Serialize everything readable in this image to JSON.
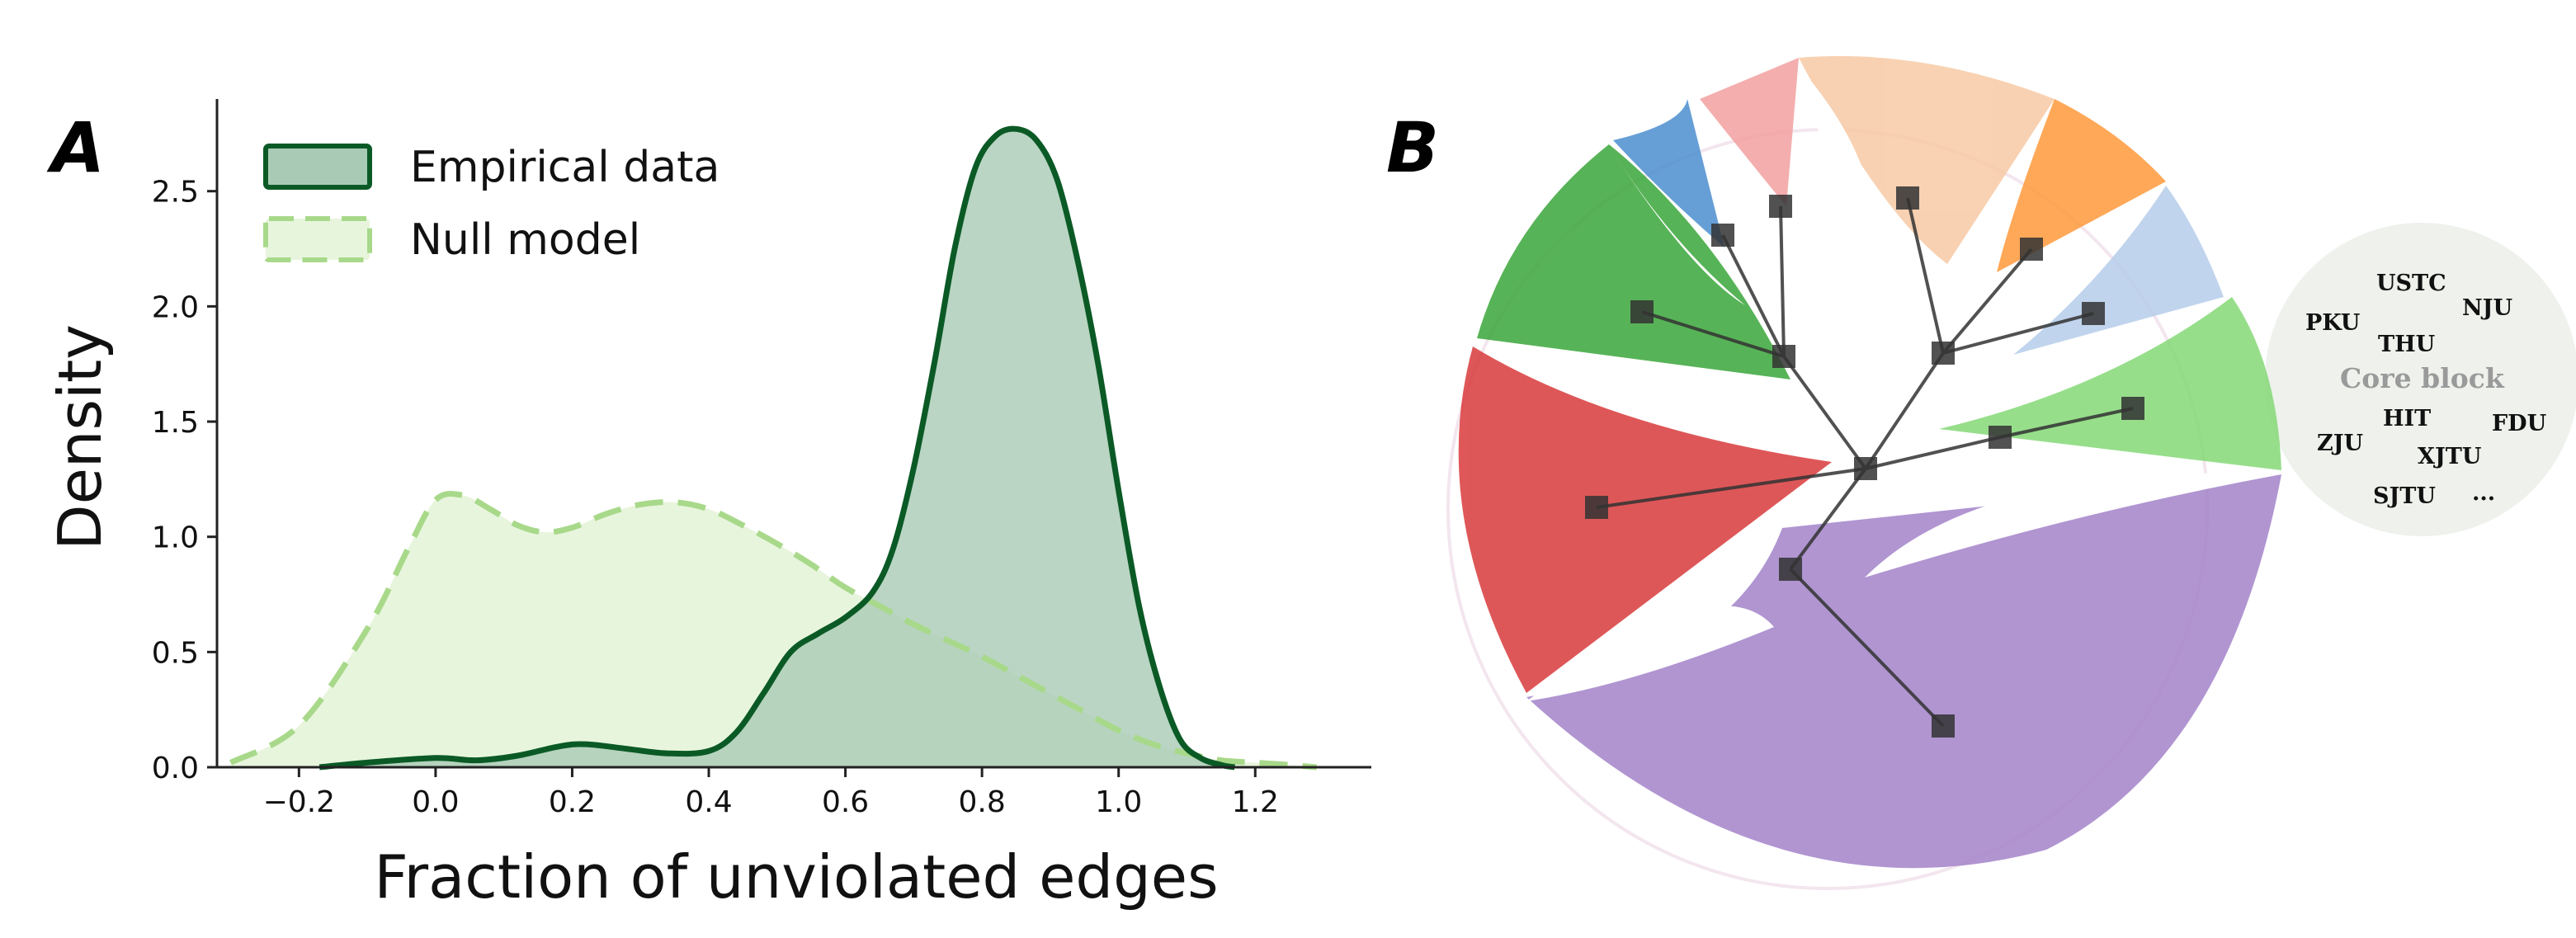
{
  "panels": {
    "a_label": "A",
    "b_label": "B"
  },
  "colors": {
    "empirical_line": "#0b5a26",
    "empirical_fill": "#a9cbb5",
    "null_line": "#a8d98a",
    "null_fill": "#e8f5dd",
    "block_marker": "#333333"
  },
  "chart_data": [
    {
      "type": "area",
      "title": "",
      "xlabel": "Fraction of unviolated edges",
      "ylabel": "Density",
      "xlim": [
        -0.32,
        1.37
      ],
      "ylim": [
        0,
        2.9
      ],
      "x_ticks": [
        -0.2,
        0.0,
        0.2,
        0.4,
        0.6,
        0.8,
        1.0,
        1.2
      ],
      "x_tick_labels": [
        "−0.2",
        "0.0",
        "0.2",
        "0.4",
        "0.6",
        "0.8",
        "1.0",
        "1.2"
      ],
      "y_ticks": [
        0.0,
        0.5,
        1.0,
        1.5,
        2.0,
        2.5
      ],
      "y_tick_labels": [
        "0.0",
        "0.5",
        "1.0",
        "1.5",
        "2.0",
        "2.5"
      ],
      "grid": false,
      "legend": "top-left",
      "series": [
        {
          "name": "Empirical data",
          "style": "solid",
          "x": [
            -0.17,
            -0.1,
            0.0,
            0.06,
            0.12,
            0.18,
            0.22,
            0.28,
            0.34,
            0.4,
            0.44,
            0.48,
            0.52,
            0.56,
            0.6,
            0.64,
            0.67,
            0.7,
            0.73,
            0.76,
            0.79,
            0.82,
            0.85,
            0.88,
            0.91,
            0.94,
            0.97,
            1.0,
            1.03,
            1.06,
            1.09,
            1.12,
            1.15,
            1.17
          ],
          "y": [
            0.0,
            0.02,
            0.04,
            0.03,
            0.05,
            0.09,
            0.1,
            0.08,
            0.06,
            0.07,
            0.15,
            0.32,
            0.5,
            0.58,
            0.65,
            0.76,
            0.95,
            1.3,
            1.75,
            2.25,
            2.6,
            2.74,
            2.77,
            2.72,
            2.55,
            2.2,
            1.75,
            1.2,
            0.7,
            0.35,
            0.12,
            0.04,
            0.01,
            0.0
          ]
        },
        {
          "name": "Null model",
          "style": "dashed",
          "x": [
            -0.3,
            -0.2,
            -0.1,
            -0.04,
            0.0,
            0.04,
            0.08,
            0.12,
            0.16,
            0.2,
            0.25,
            0.3,
            0.35,
            0.4,
            0.45,
            0.5,
            0.55,
            0.6,
            0.65,
            0.7,
            0.75,
            0.8,
            0.85,
            0.9,
            0.95,
            1.0,
            1.05,
            1.1,
            1.15,
            1.2,
            1.25,
            1.29
          ],
          "y": [
            0.02,
            0.18,
            0.6,
            0.95,
            1.16,
            1.18,
            1.12,
            1.05,
            1.02,
            1.04,
            1.1,
            1.14,
            1.15,
            1.12,
            1.05,
            0.97,
            0.88,
            0.78,
            0.7,
            0.62,
            0.55,
            0.48,
            0.4,
            0.32,
            0.24,
            0.16,
            0.1,
            0.06,
            0.03,
            0.02,
            0.01,
            0.0
          ]
        }
      ]
    },
    {
      "type": "diagram",
      "title": "",
      "description_free": true,
      "core_block": {
        "title": "Core block",
        "universities": [
          "USTC",
          "PKU",
          "NJU",
          "THU",
          "HIT",
          "FDU",
          "ZJU",
          "XJTU",
          "SJTU",
          "..."
        ]
      },
      "block_colors": [
        "#1f77b4",
        "#f08b8b",
        "#f5b98a",
        "#ff7f0e",
        "#a9c4e6",
        "#6ccf5c",
        "#2ca02c",
        "#d62728",
        "#9467bd"
      ]
    }
  ]
}
